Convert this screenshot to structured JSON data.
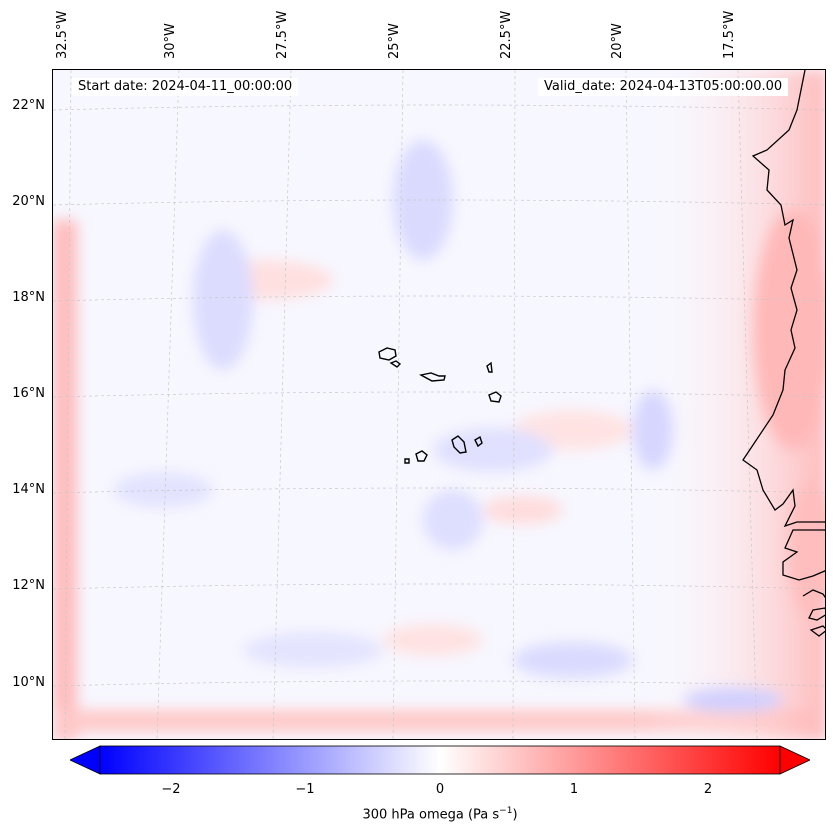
{
  "map": {
    "start_date": "Start date: 2024-04-11_00:00:00",
    "valid_date": "Valid_date: 2024-04-13T05:00:00.00",
    "lon_labels": [
      "32.5°W",
      "30°W",
      "27.5°W",
      "25°W",
      "22.5°W",
      "20°W",
      "17.5°W"
    ],
    "lat_labels": [
      "22°N",
      "20°N",
      "18°N",
      "16°N",
      "14°N",
      "12°N",
      "10°N"
    ],
    "coastline_color": "#000000",
    "gridline_color": "#bbbbbb"
  },
  "colorbar": {
    "label_main": "300 hPa omega (Pa s",
    "label_sup": "−1",
    "label_close": ")",
    "ticks": [
      "−2",
      "−1",
      "0",
      "1",
      "2"
    ],
    "vmin": -2.7,
    "vmax": 2.7,
    "cmap": "bwr",
    "extend": "both"
  }
}
